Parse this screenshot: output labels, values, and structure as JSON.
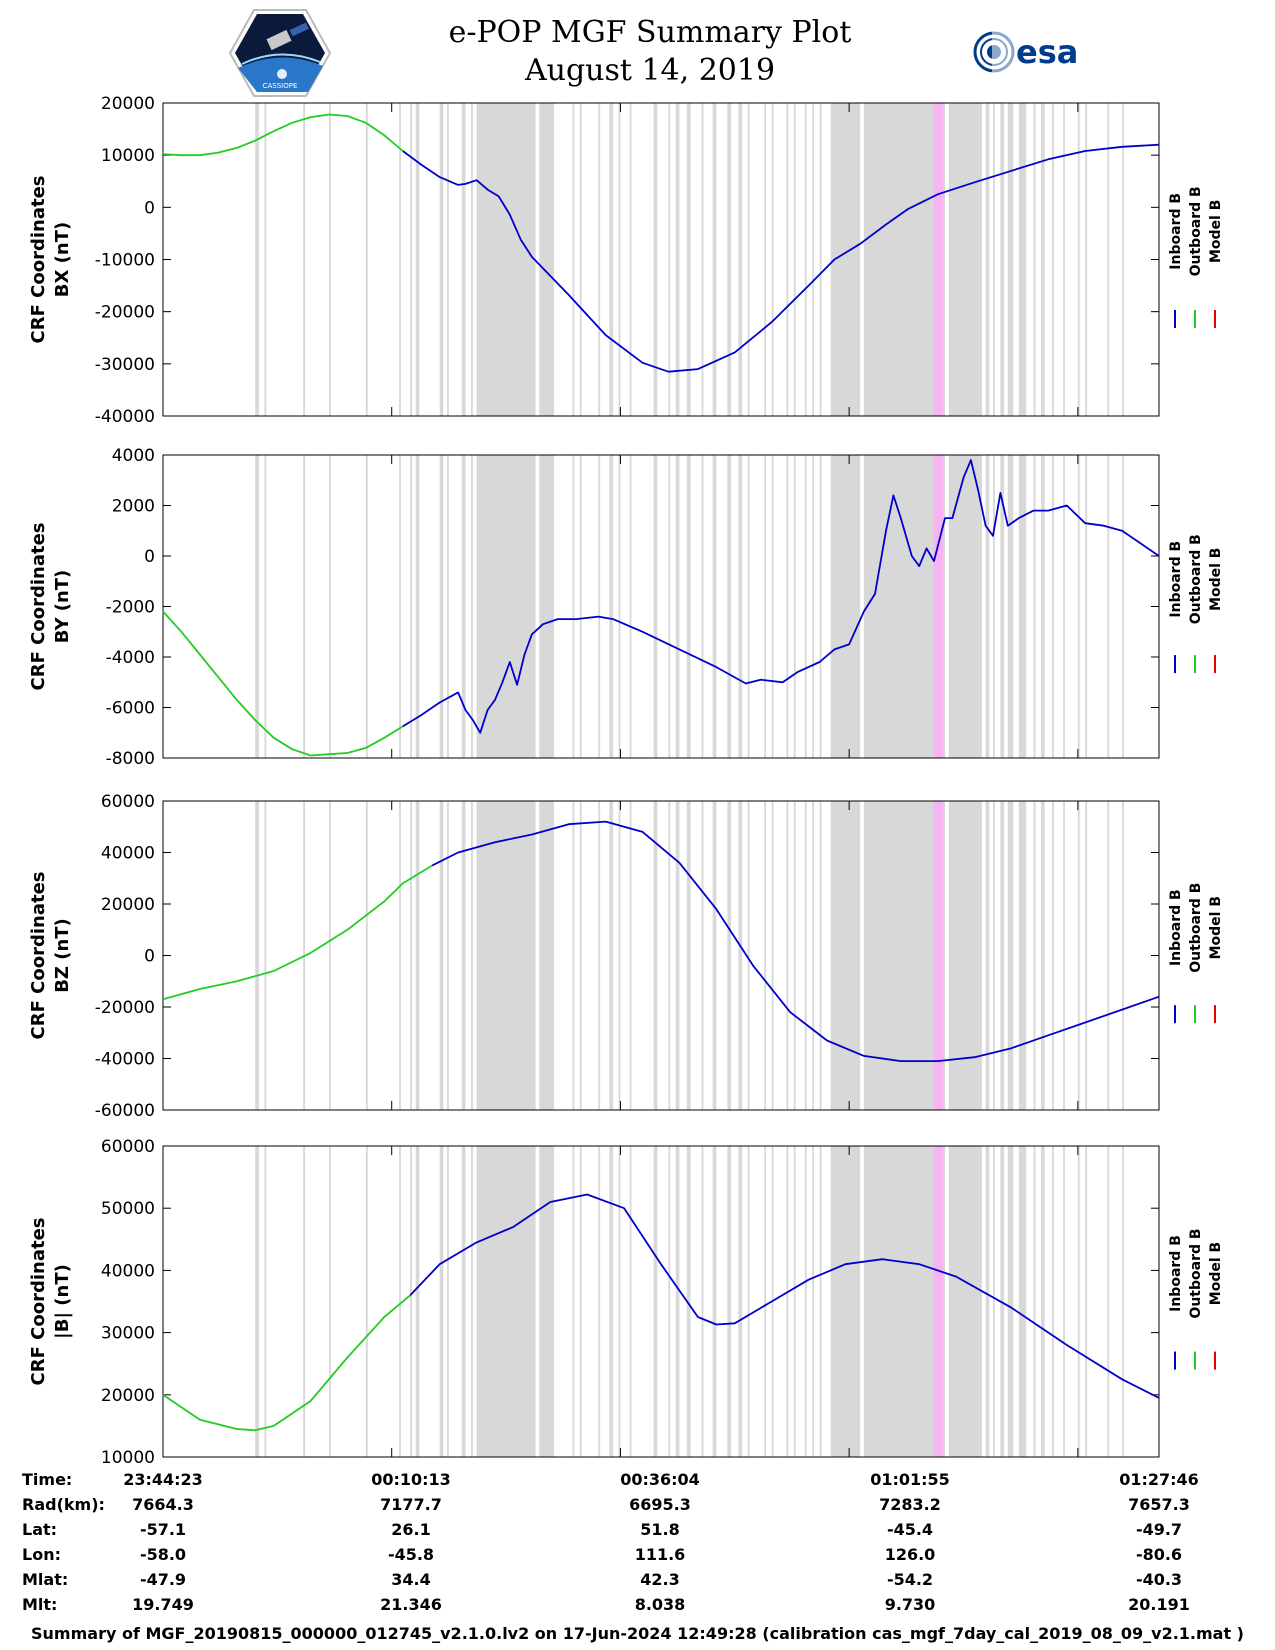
{
  "header": {
    "title_line1": "e-POP MGF Summary Plot",
    "title_line2": "August 14, 2019",
    "logo_left_text": "CASSIOPE",
    "logo_right_text": "esa"
  },
  "legend": {
    "inboard": "Inboard B",
    "outboard": "Outboard B",
    "model": "Model B"
  },
  "colors": {
    "inboard": "#0000cc",
    "outboard": "#22cc22",
    "model": "#e00000",
    "shade": "#d8d8d8",
    "highlight": "#f6b4f2"
  },
  "chart_data": [
    {
      "type": "line",
      "name": "BX",
      "ylabel_line1": "CRF Coordinates",
      "ylabel_line2": "BX (nT)",
      "ylim": [
        -40000,
        20000
      ],
      "yticks": [
        20000,
        10000,
        0,
        -10000,
        -20000,
        -30000,
        -40000
      ],
      "ytick_labels": [
        "20000",
        "10000",
        "0",
        "-10000",
        "-20000",
        "-30000",
        "-40000"
      ],
      "outboard": [
        [
          0,
          10200
        ],
        [
          5,
          10000
        ],
        [
          10,
          10000
        ],
        [
          15,
          10500
        ],
        [
          20,
          11400
        ],
        [
          25,
          12800
        ],
        [
          30,
          14600
        ],
        [
          35,
          16200
        ],
        [
          40,
          17300
        ],
        [
          45,
          17800
        ],
        [
          50,
          17500
        ],
        [
          55,
          16200
        ],
        [
          60,
          13800
        ],
        [
          65,
          10800
        ]
      ],
      "inboard": [
        [
          65,
          10800
        ],
        [
          70,
          8200
        ],
        [
          75,
          5800
        ],
        [
          80,
          4300
        ],
        [
          82,
          4500
        ],
        [
          85,
          5200
        ],
        [
          88,
          3400
        ],
        [
          91,
          2100
        ],
        [
          94,
          -1400
        ],
        [
          97,
          -6200
        ],
        [
          100,
          -9500
        ],
        [
          110,
          -16800
        ],
        [
          120,
          -24500
        ],
        [
          130,
          -29800
        ],
        [
          137,
          -31500
        ],
        [
          145,
          -31000
        ],
        [
          155,
          -27800
        ],
        [
          165,
          -22000
        ],
        [
          175,
          -15000
        ],
        [
          182,
          -10000
        ],
        [
          189,
          -7000
        ],
        [
          196,
          -3300
        ],
        [
          202,
          -300
        ],
        [
          210,
          2500
        ],
        [
          220,
          4800
        ],
        [
          230,
          7000
        ],
        [
          240,
          9200
        ],
        [
          250,
          10800
        ],
        [
          260,
          11600
        ],
        [
          270,
          12000
        ]
      ]
    },
    {
      "type": "line",
      "name": "BY",
      "ylabel_line1": "CRF Coordinates",
      "ylabel_line2": "BY (nT)",
      "ylim": [
        -8000,
        4000
      ],
      "yticks": [
        4000,
        2000,
        0,
        -2000,
        -4000,
        -6000,
        -8000
      ],
      "ytick_labels": [
        "4000",
        "2000",
        "0",
        "-2000",
        "-4000",
        "-6000",
        "-8000"
      ],
      "outboard": [
        [
          0,
          -2200
        ],
        [
          5,
          -3000
        ],
        [
          10,
          -3900
        ],
        [
          15,
          -4800
        ],
        [
          20,
          -5700
        ],
        [
          25,
          -6500
        ],
        [
          30,
          -7200
        ],
        [
          35,
          -7650
        ],
        [
          40,
          -7900
        ],
        [
          45,
          -7850
        ],
        [
          50,
          -7800
        ],
        [
          55,
          -7600
        ],
        [
          60,
          -7200
        ],
        [
          65,
          -6750
        ]
      ],
      "inboard": [
        [
          65,
          -6750
        ],
        [
          70,
          -6300
        ],
        [
          75,
          -5800
        ],
        [
          80,
          -5400
        ],
        [
          82,
          -6100
        ],
        [
          84,
          -6500
        ],
        [
          86,
          -7000
        ],
        [
          88,
          -6100
        ],
        [
          90,
          -5700
        ],
        [
          92,
          -5000
        ],
        [
          94,
          -4200
        ],
        [
          96,
          -5100
        ],
        [
          98,
          -3900
        ],
        [
          100,
          -3100
        ],
        [
          103,
          -2700
        ],
        [
          107,
          -2500
        ],
        [
          112,
          -2500
        ],
        [
          118,
          -2400
        ],
        [
          122,
          -2500
        ],
        [
          130,
          -3000
        ],
        [
          140,
          -3700
        ],
        [
          150,
          -4400
        ],
        [
          158,
          -5050
        ],
        [
          162,
          -4900
        ],
        [
          168,
          -5000
        ],
        [
          172,
          -4600
        ],
        [
          178,
          -4200
        ],
        [
          182,
          -3700
        ],
        [
          186,
          -3500
        ],
        [
          190,
          -2200
        ],
        [
          193,
          -1500
        ],
        [
          196,
          1000
        ],
        [
          198,
          2400
        ],
        [
          200,
          1500
        ],
        [
          203,
          0
        ],
        [
          205,
          -400
        ],
        [
          207,
          300
        ],
        [
          209,
          -200
        ],
        [
          212,
          1500
        ],
        [
          214,
          1500
        ],
        [
          217,
          3100
        ],
        [
          219,
          3800
        ],
        [
          221,
          2600
        ],
        [
          223,
          1200
        ],
        [
          225,
          800
        ],
        [
          227,
          2500
        ],
        [
          229,
          1200
        ],
        [
          232,
          1500
        ],
        [
          236,
          1800
        ],
        [
          240,
          1800
        ],
        [
          245,
          2000
        ],
        [
          250,
          1300
        ],
        [
          255,
          1200
        ],
        [
          260,
          1000
        ],
        [
          265,
          500
        ],
        [
          270,
          0
        ]
      ]
    },
    {
      "type": "line",
      "name": "BZ",
      "ylabel_line1": "CRF Coordinates",
      "ylabel_line2": "BZ (nT)",
      "ylim": [
        -60000,
        60000
      ],
      "yticks": [
        60000,
        40000,
        20000,
        0,
        -20000,
        -40000,
        -60000
      ],
      "ytick_labels": [
        "60000",
        "40000",
        "20000",
        "0",
        "-20000",
        "-40000",
        "-60000"
      ],
      "outboard": [
        [
          0,
          -17000
        ],
        [
          10,
          -13000
        ],
        [
          20,
          -10000
        ],
        [
          30,
          -6000
        ],
        [
          40,
          1000
        ],
        [
          50,
          10000
        ],
        [
          60,
          21000
        ],
        [
          65,
          28000
        ],
        [
          73,
          35000
        ]
      ],
      "inboard": [
        [
          73,
          35000
        ],
        [
          80,
          40000
        ],
        [
          90,
          44000
        ],
        [
          100,
          47000
        ],
        [
          110,
          51000
        ],
        [
          120,
          52000
        ],
        [
          130,
          48000
        ],
        [
          140,
          36000
        ],
        [
          150,
          18000
        ],
        [
          160,
          -4000
        ],
        [
          170,
          -22000
        ],
        [
          180,
          -33000
        ],
        [
          190,
          -39000
        ],
        [
          200,
          -41000
        ],
        [
          210,
          -41000
        ],
        [
          220,
          -39500
        ],
        [
          230,
          -36000
        ],
        [
          240,
          -31000
        ],
        [
          250,
          -26000
        ],
        [
          260,
          -21000
        ],
        [
          270,
          -16000
        ]
      ]
    },
    {
      "type": "line",
      "name": "|B|",
      "ylabel_line1": "CRF Coordinates",
      "ylabel_line2": "|B| (nT)",
      "ylim": [
        10000,
        60000
      ],
      "yticks": [
        60000,
        50000,
        40000,
        30000,
        20000,
        10000
      ],
      "ytick_labels": [
        "60000",
        "50000",
        "40000",
        "30000",
        "20000",
        "10000"
      ],
      "outboard": [
        [
          0,
          20000
        ],
        [
          10,
          16000
        ],
        [
          20,
          14500
        ],
        [
          25,
          14300
        ],
        [
          30,
          15000
        ],
        [
          40,
          19000
        ],
        [
          50,
          26000
        ],
        [
          60,
          32500
        ],
        [
          67,
          36000
        ]
      ],
      "inboard": [
        [
          67,
          36000
        ],
        [
          75,
          41000
        ],
        [
          85,
          44500
        ],
        [
          95,
          47000
        ],
        [
          105,
          51000
        ],
        [
          115,
          52200
        ],
        [
          125,
          50000
        ],
        [
          135,
          41000
        ],
        [
          145,
          32500
        ],
        [
          150,
          31300
        ],
        [
          155,
          31500
        ],
        [
          165,
          35000
        ],
        [
          175,
          38500
        ],
        [
          185,
          41000
        ],
        [
          195,
          41800
        ],
        [
          205,
          41000
        ],
        [
          215,
          39000
        ],
        [
          230,
          34000
        ],
        [
          245,
          28000
        ],
        [
          260,
          22500
        ],
        [
          270,
          19500
        ]
      ]
    }
  ],
  "x_axis": {
    "range": [
      0,
      270
    ],
    "tick_positions": [
      0,
      62,
      124,
      186,
      248
    ],
    "gray_bands": [
      [
        25,
        26
      ],
      [
        27.5,
        28
      ],
      [
        38,
        38.5
      ],
      [
        45,
        45.5
      ],
      [
        55,
        55.5
      ],
      [
        64,
        64.5
      ],
      [
        67,
        67.5
      ],
      [
        68.5,
        69.5
      ],
      [
        75,
        76
      ],
      [
        77,
        77.5
      ],
      [
        81,
        82
      ],
      [
        83.5,
        84
      ],
      [
        85,
        101
      ],
      [
        102,
        106
      ],
      [
        111,
        111.5
      ],
      [
        113,
        113.5
      ],
      [
        118,
        118.5
      ],
      [
        121,
        122
      ],
      [
        123.5,
        124
      ],
      [
        126.5,
        127
      ],
      [
        133,
        134
      ],
      [
        137,
        137.5
      ],
      [
        139,
        140
      ],
      [
        142,
        143
      ],
      [
        146,
        146.5
      ],
      [
        149,
        150
      ],
      [
        153,
        154
      ],
      [
        156,
        157
      ],
      [
        158.5,
        159
      ],
      [
        163,
        163.5
      ],
      [
        165,
        165.5
      ],
      [
        169,
        169.5
      ],
      [
        171,
        171.5
      ],
      [
        174,
        174.5
      ],
      [
        176,
        176.5
      ],
      [
        178,
        178.5
      ],
      [
        181,
        189
      ],
      [
        190,
        212
      ],
      [
        213,
        222
      ],
      [
        223,
        224
      ],
      [
        225,
        225.5
      ],
      [
        227,
        228
      ],
      [
        229,
        230.5
      ],
      [
        232,
        234
      ],
      [
        236,
        236.5
      ],
      [
        238,
        239
      ],
      [
        241,
        241.5
      ],
      [
        244,
        244.5
      ],
      [
        248,
        248.5
      ],
      [
        250,
        250.5
      ],
      [
        256,
        256.5
      ],
      [
        260,
        260.5
      ]
    ],
    "highlight_band": [
      209,
      211.5
    ]
  },
  "info_table": {
    "labels": [
      "Time:",
      "Rad(km):",
      "Lat:",
      "Lon:",
      "Mlat:",
      "Mlt:"
    ],
    "columns": [
      [
        "23:44:23",
        "7664.3",
        "-57.1",
        "-58.0",
        "-47.9",
        "19.749"
      ],
      [
        "00:10:13",
        "7177.7",
        "26.1",
        "-45.8",
        "34.4",
        "21.346"
      ],
      [
        "00:36:04",
        "6695.3",
        "51.8",
        "111.6",
        "42.3",
        "8.038"
      ],
      [
        "01:01:55",
        "7283.2",
        "-45.4",
        "126.0",
        "-54.2",
        "9.730"
      ],
      [
        "01:27:46",
        "7657.3",
        "-49.7",
        "-80.6",
        "-40.3",
        "20.191"
      ]
    ]
  },
  "footer": {
    "text": "Summary of MGF_20190815_000000_012745_v2.1.0.lv2 on 17-Jun-2024 12:49:28 (calibration cas_mgf_7day_cal_2019_08_09_v2.1.mat )"
  }
}
